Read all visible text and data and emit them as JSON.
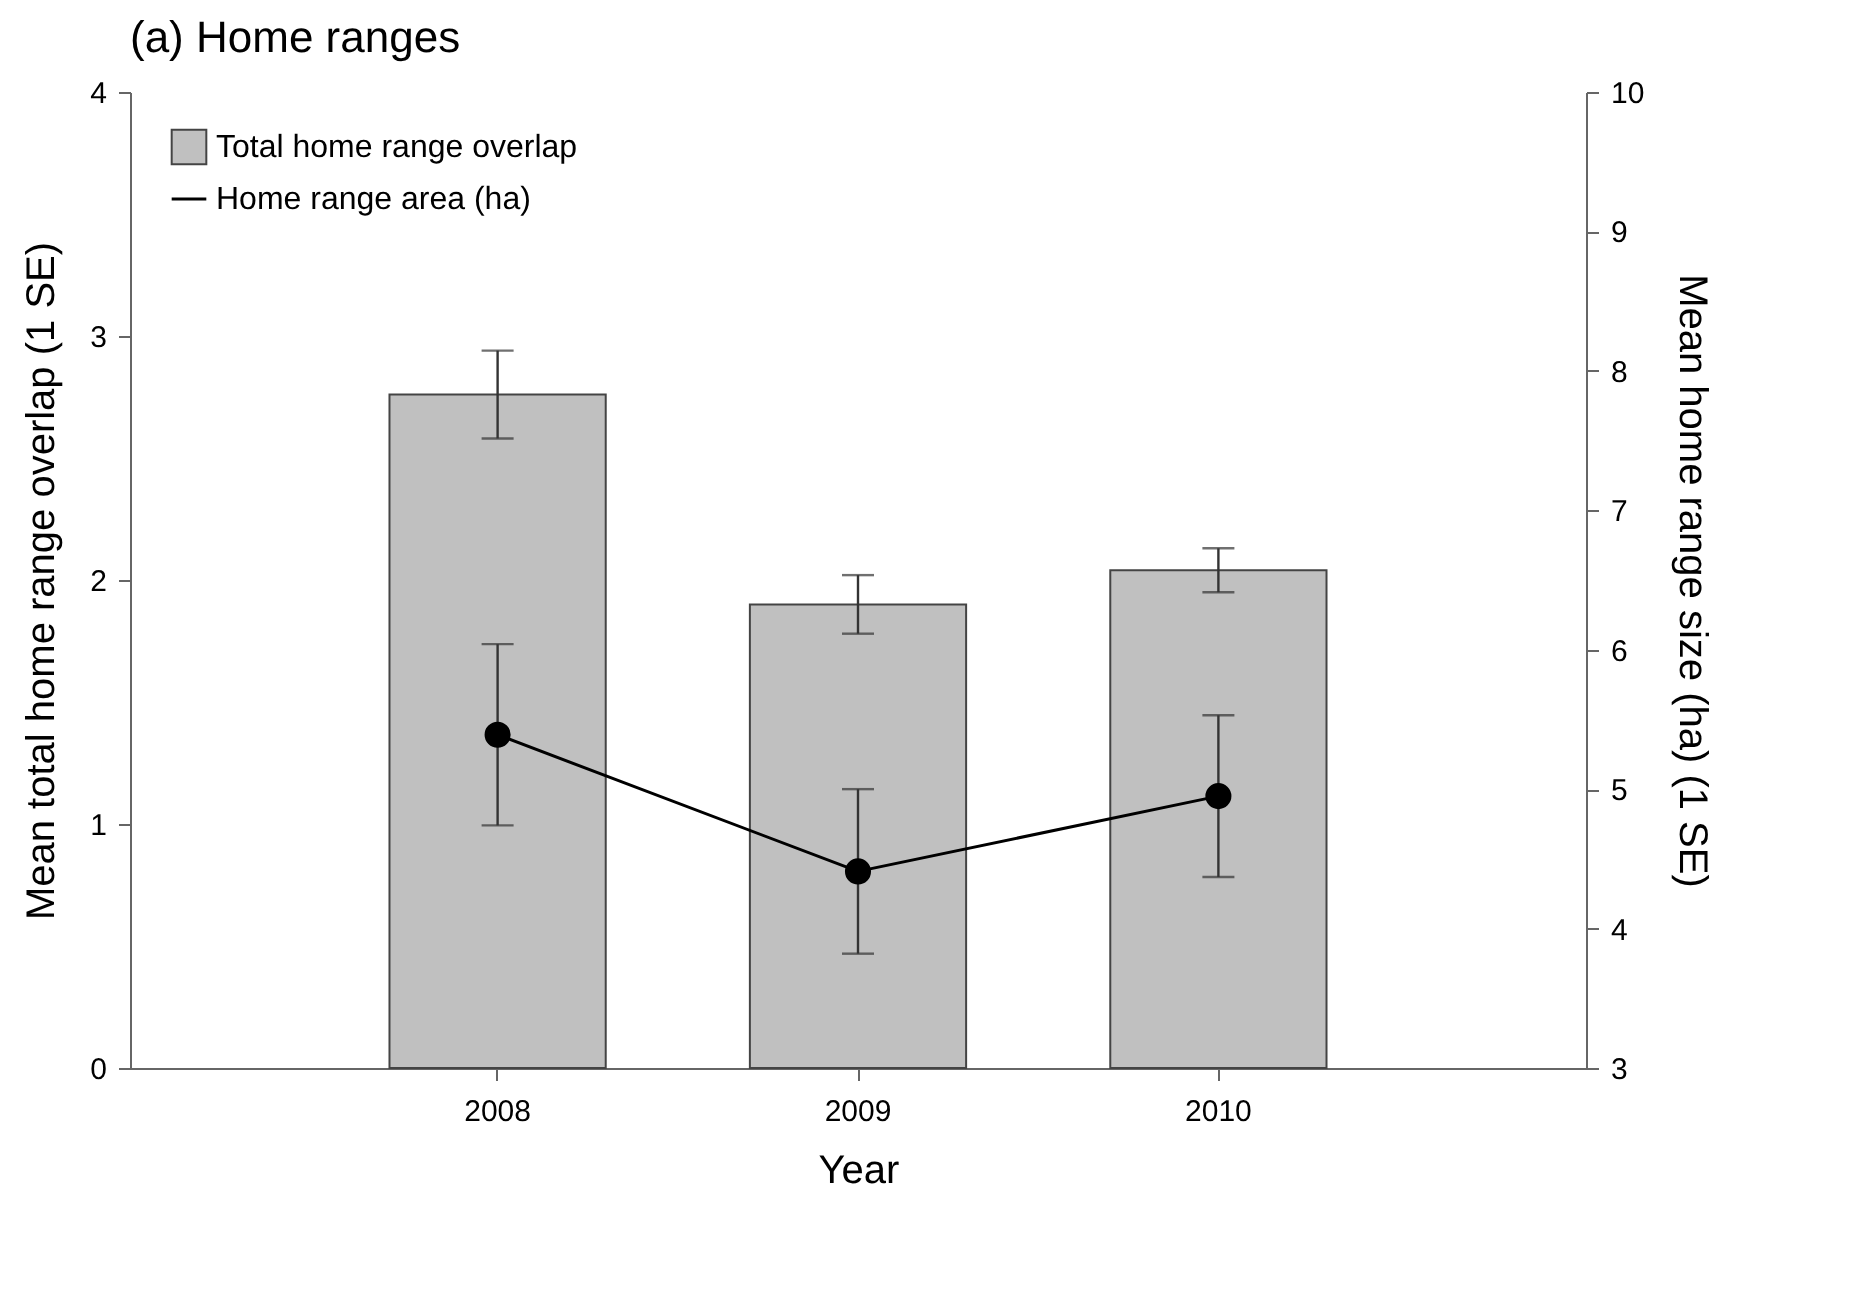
{
  "chart_data": {
    "type": "bar",
    "title": "(a) Home ranges",
    "xlabel": "Year",
    "ylabel": "Mean total home range overlap (1 SE)",
    "y2label": "Mean home range size (ha) (1 SE)",
    "categories": [
      "2008",
      "2009",
      "2010"
    ],
    "series": [
      {
        "name": "Total home range overlap",
        "color": "#c0c0c0",
        "values": [
          2.76,
          1.9,
          2.04
        ],
        "errors": [
          0.18,
          0.12,
          0.09
        ]
      },
      {
        "name": "Home range area (ha)",
        "type": "line",
        "axis": "y2",
        "color": "#000000",
        "values": [
          5.39,
          4.41,
          4.95
        ],
        "errors": [
          0.65,
          0.59,
          0.58
        ]
      }
    ],
    "ylim": [
      0,
      4
    ],
    "yticks": [
      0,
      1,
      2,
      3,
      4
    ],
    "y2lim": [
      3,
      10
    ],
    "y2ticks": [
      3,
      4,
      5,
      6,
      7,
      8,
      9,
      10
    ],
    "grid": false,
    "legend": "top left",
    "marker": "circle",
    "line_style": "solid"
  }
}
